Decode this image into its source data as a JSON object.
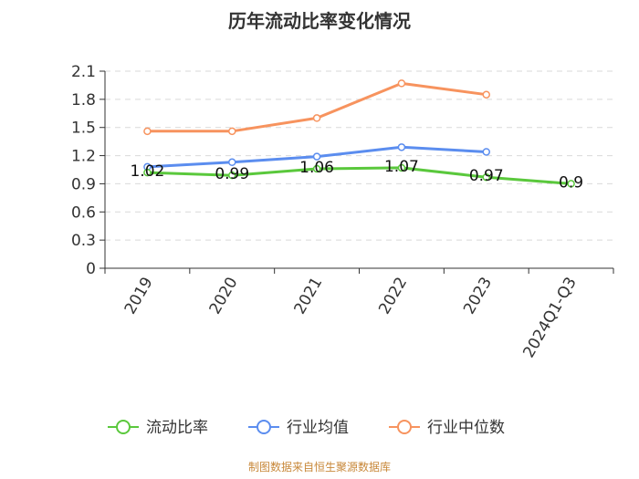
{
  "chart_data": {
    "type": "line",
    "title": "历年流动比率变化情况",
    "categories": [
      "2019",
      "2020",
      "2021",
      "2022",
      "2023",
      "2024Q1-Q3"
    ],
    "ylim": [
      0,
      2.1
    ],
    "yticks": [
      "0",
      "0.3",
      "0.6",
      "0.9",
      "1.2",
      "1.5",
      "1.8",
      "2.1"
    ],
    "grid": true,
    "legend_position": "bottom",
    "series": [
      {
        "name": "流动比率",
        "color": "#5ac83c",
        "values": [
          1.02,
          0.99,
          1.06,
          1.07,
          0.97,
          0.9
        ],
        "labels": [
          "1.02",
          "0.99",
          "1.06",
          "1.07",
          "0.97",
          "0.9"
        ]
      },
      {
        "name": "行业均值",
        "color": "#5b8def",
        "values": [
          1.08,
          1.13,
          1.19,
          1.29,
          1.24,
          null
        ]
      },
      {
        "name": "行业中位数",
        "color": "#f7935e",
        "values": [
          1.46,
          1.46,
          1.6,
          1.97,
          1.85,
          null
        ]
      }
    ],
    "source": "制图数据来自恒生聚源数据库"
  }
}
